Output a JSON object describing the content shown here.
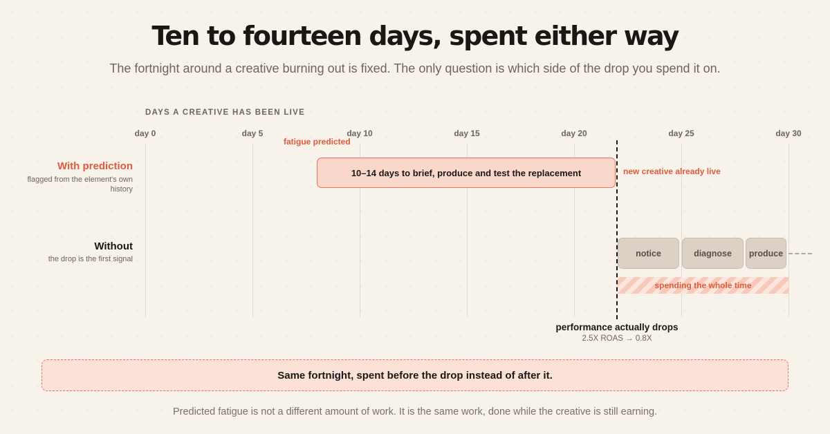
{
  "title": "Ten to fourteen days, spent either way",
  "subtitle": "The fortnight around a creative burning out is fixed. The only question is which side of the drop you spend it on.",
  "axis": {
    "title": "DAYS A CREATIVE HAS BEEN LIVE",
    "range": [
      0,
      30
    ],
    "ticks": [
      {
        "day": 0,
        "label": "day 0"
      },
      {
        "day": 5,
        "label": "day 5"
      },
      {
        "day": 10,
        "label": "day 10"
      },
      {
        "day": 15,
        "label": "day 15"
      },
      {
        "day": 20,
        "label": "day 20"
      },
      {
        "day": 25,
        "label": "day 25"
      },
      {
        "day": 30,
        "label": "day 30"
      }
    ]
  },
  "rows": {
    "with": {
      "label": "With prediction",
      "sublabel": "flagged from the element's own history",
      "fatigue_label": "fatigue predicted",
      "bar": {
        "start_day": 8,
        "end_day": 22,
        "label": "10–14 days to brief, produce and test the replacement"
      },
      "after_label": "new creative already live"
    },
    "without": {
      "label": "Without",
      "sublabel": "the drop is the first signal",
      "steps": [
        {
          "label": "notice"
        },
        {
          "label": "diagnose"
        },
        {
          "label": "produce"
        }
      ],
      "band_label": "spending the whole time"
    }
  },
  "drop": {
    "day": 22,
    "label": "performance actually drops",
    "sublabel": "2.5X ROAS → 0.8X"
  },
  "callout": "Same fortnight, spent before the drop instead of after it.",
  "footer": "Predicted fatigue is not a different amount of work. It is the same work, done while the creative is still earning.",
  "colors": {
    "accent": "#e05a3c",
    "bar_fill": "#f9d7cb",
    "step_fill": "#dcd1c5",
    "text": "#1b1714",
    "muted": "#6e645b"
  }
}
